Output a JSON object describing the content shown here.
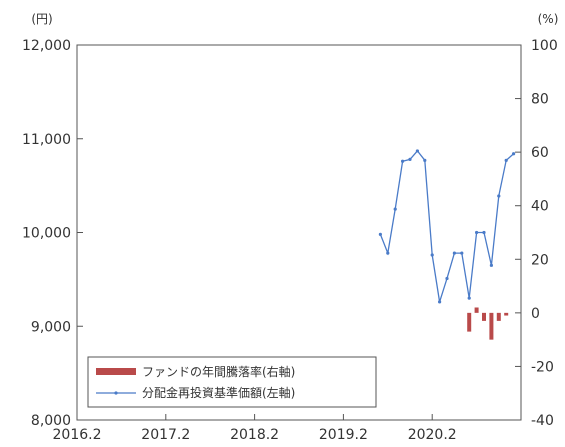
{
  "chart_data": {
    "type": "line",
    "title": "",
    "left_axis_unit": "(円)",
    "right_axis_unit": "(%)",
    "x_ticks": [
      "2016.2",
      "2017.2",
      "2018.2",
      "2019.2",
      "2020.2"
    ],
    "y_left": {
      "range": [
        8000,
        12000
      ],
      "ticks": [
        "8,000",
        "9,000",
        "10,000",
        "11,000",
        "12,000"
      ]
    },
    "y_right": {
      "range": [
        -40,
        100
      ],
      "ticks": [
        "-40",
        "-20",
        "0",
        "20",
        "40",
        "60",
        "80",
        "100"
      ]
    },
    "legend": [
      {
        "label": "ファンドの年間騰落率(右軸)",
        "color": "#b94a4a",
        "kind": "bar"
      },
      {
        "label": "分配金再投資基準価額(左軸)",
        "color": "#4a7bc8",
        "kind": "line"
      }
    ],
    "series": [
      {
        "name": "分配金再投資基準価額(左軸)",
        "axis": "left",
        "type": "line",
        "color": "#4a7bc8",
        "x": [
          "2019.7",
          "2019.8",
          "2019.9",
          "2019.10",
          "2019.11",
          "2019.12",
          "2020.1",
          "2020.2",
          "2020.3",
          "2020.4",
          "2020.5",
          "2020.6",
          "2020.7",
          "2020.8",
          "2020.9",
          "2020.10",
          "2020.11",
          "2020.12",
          "2021.1"
        ],
        "values": [
          9980,
          9780,
          10250,
          10760,
          10780,
          10870,
          10770,
          9760,
          9260,
          9510,
          9780,
          9780,
          9300,
          10000,
          10000,
          9650,
          10390,
          10770,
          10840
        ]
      },
      {
        "name": "ファンドの年間騰落率(右軸)",
        "axis": "right",
        "type": "bar",
        "color": "#b94a4a",
        "x": [
          "2020.7",
          "2020.8",
          "2020.9",
          "2020.10",
          "2020.11",
          "2020.12",
          "2021.1"
        ],
        "values": [
          -7,
          2,
          -3,
          -10,
          -3,
          -1,
          0
        ]
      }
    ]
  }
}
